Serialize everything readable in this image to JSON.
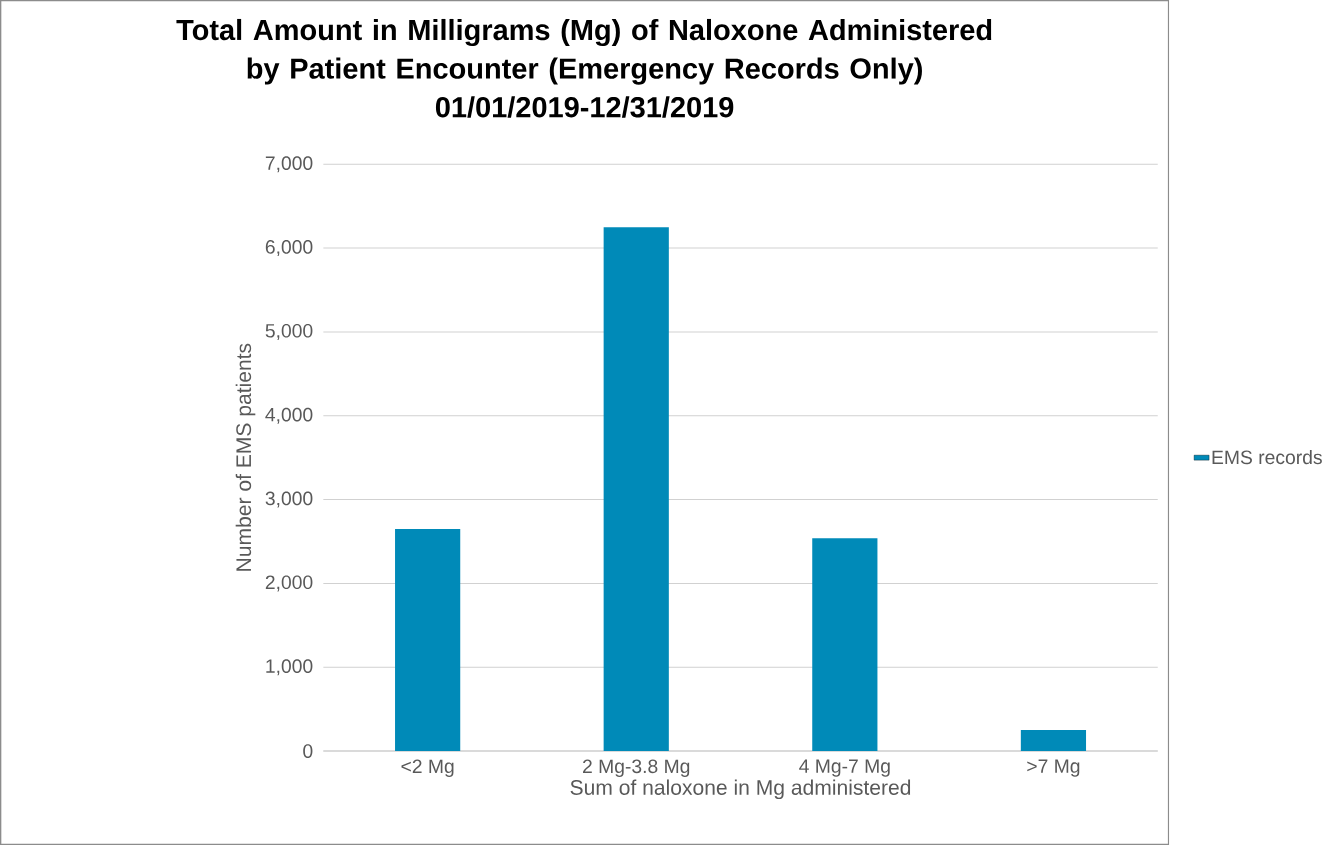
{
  "chart_data": {
    "type": "bar",
    "title": "Total Amount in Milligrams (Mg) of Naloxone Administered by Patient Encounter (Emergency Records Only)",
    "subtitle": "01/01/2019-12/31/2019",
    "xlabel": "Sum of naloxone in Mg administered",
    "ylabel": "Number of EMS patients",
    "categories": [
      "<2 Mg",
      "2 Mg-3.8 Mg",
      "4 Mg-7 Mg",
      ">7 Mg"
    ],
    "series": [
      {
        "name": "EMS records",
        "color": "#008ab8",
        "values": [
          2650,
          6250,
          2540,
          250
        ]
      }
    ],
    "ylim": [
      0,
      7000
    ],
    "yticks": [
      0,
      {
        "value": 1000,
        "label": "1,000"
      },
      {
        "value": 2000,
        "label": "2,000"
      },
      {
        "value": 3000,
        "label": "3,000"
      },
      {
        "value": 4000,
        "label": "4,000"
      },
      {
        "value": 5000,
        "label": "5,000"
      },
      {
        "value": 6000,
        "label": "6,000"
      },
      {
        "value": 7000,
        "label": "7,000"
      }
    ],
    "grid": "y",
    "legend": "right"
  }
}
